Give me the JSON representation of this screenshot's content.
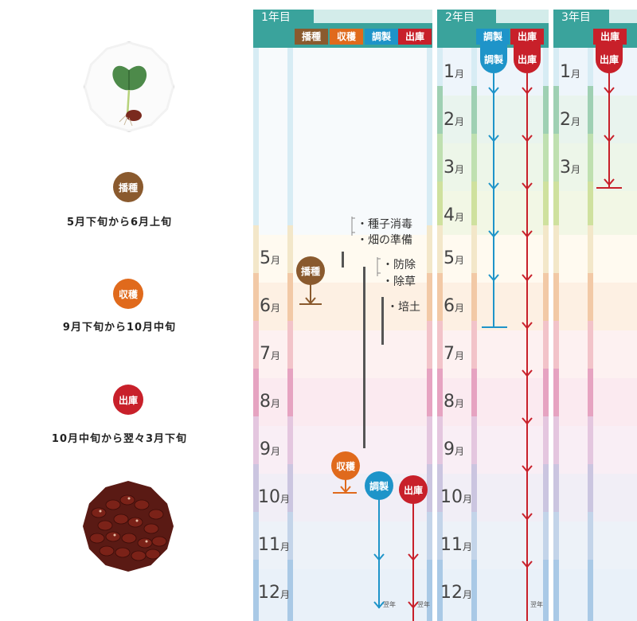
{
  "colors": {
    "header_teal": "#3aa39c",
    "sowing": "#8a5a2e",
    "harvest": "#e06a1c",
    "prep": "#1e94c9",
    "ship": "#c8202a",
    "activity": "#555555"
  },
  "left": {
    "stages": [
      {
        "label": "播種",
        "period": "5月下旬から6月上旬"
      },
      {
        "label": "収穫",
        "period": "9月下旬から10月中旬"
      },
      {
        "label": "出庫",
        "period": "10月中旬から翌々3月下旬"
      }
    ],
    "images": [
      "seedling-image",
      "beans-image"
    ]
  },
  "years": [
    {
      "title": "1年目",
      "tags": [
        "播種",
        "収穫",
        "調製",
        "出庫"
      ],
      "months": [
        "5",
        "6",
        "7",
        "8",
        "9",
        "10",
        "11",
        "12"
      ]
    },
    {
      "title": "2年目",
      "tags": [
        "調製",
        "出庫"
      ],
      "months": [
        "1",
        "2",
        "3",
        "4",
        "5",
        "6",
        "7",
        "8",
        "9",
        "10",
        "11",
        "12"
      ]
    },
    {
      "title": "3年目",
      "tags": [
        "出庫"
      ],
      "months": [
        "1",
        "2",
        "3"
      ]
    }
  ],
  "month_suffix": "月",
  "activities": [
    {
      "label": "・種子消毒"
    },
    {
      "label": "・畑の準備"
    },
    {
      "label": "・防除"
    },
    {
      "label": "・除草"
    },
    {
      "label": "・培土"
    }
  ],
  "markers": {
    "y1_sowing": "播種",
    "y1_harvest": "収穫",
    "y1_prep": "調製",
    "y1_ship": "出庫",
    "y2_prep": "調製",
    "y2_ship": "出庫",
    "y3_ship": "出庫"
  },
  "next_year_note": "翌年"
}
